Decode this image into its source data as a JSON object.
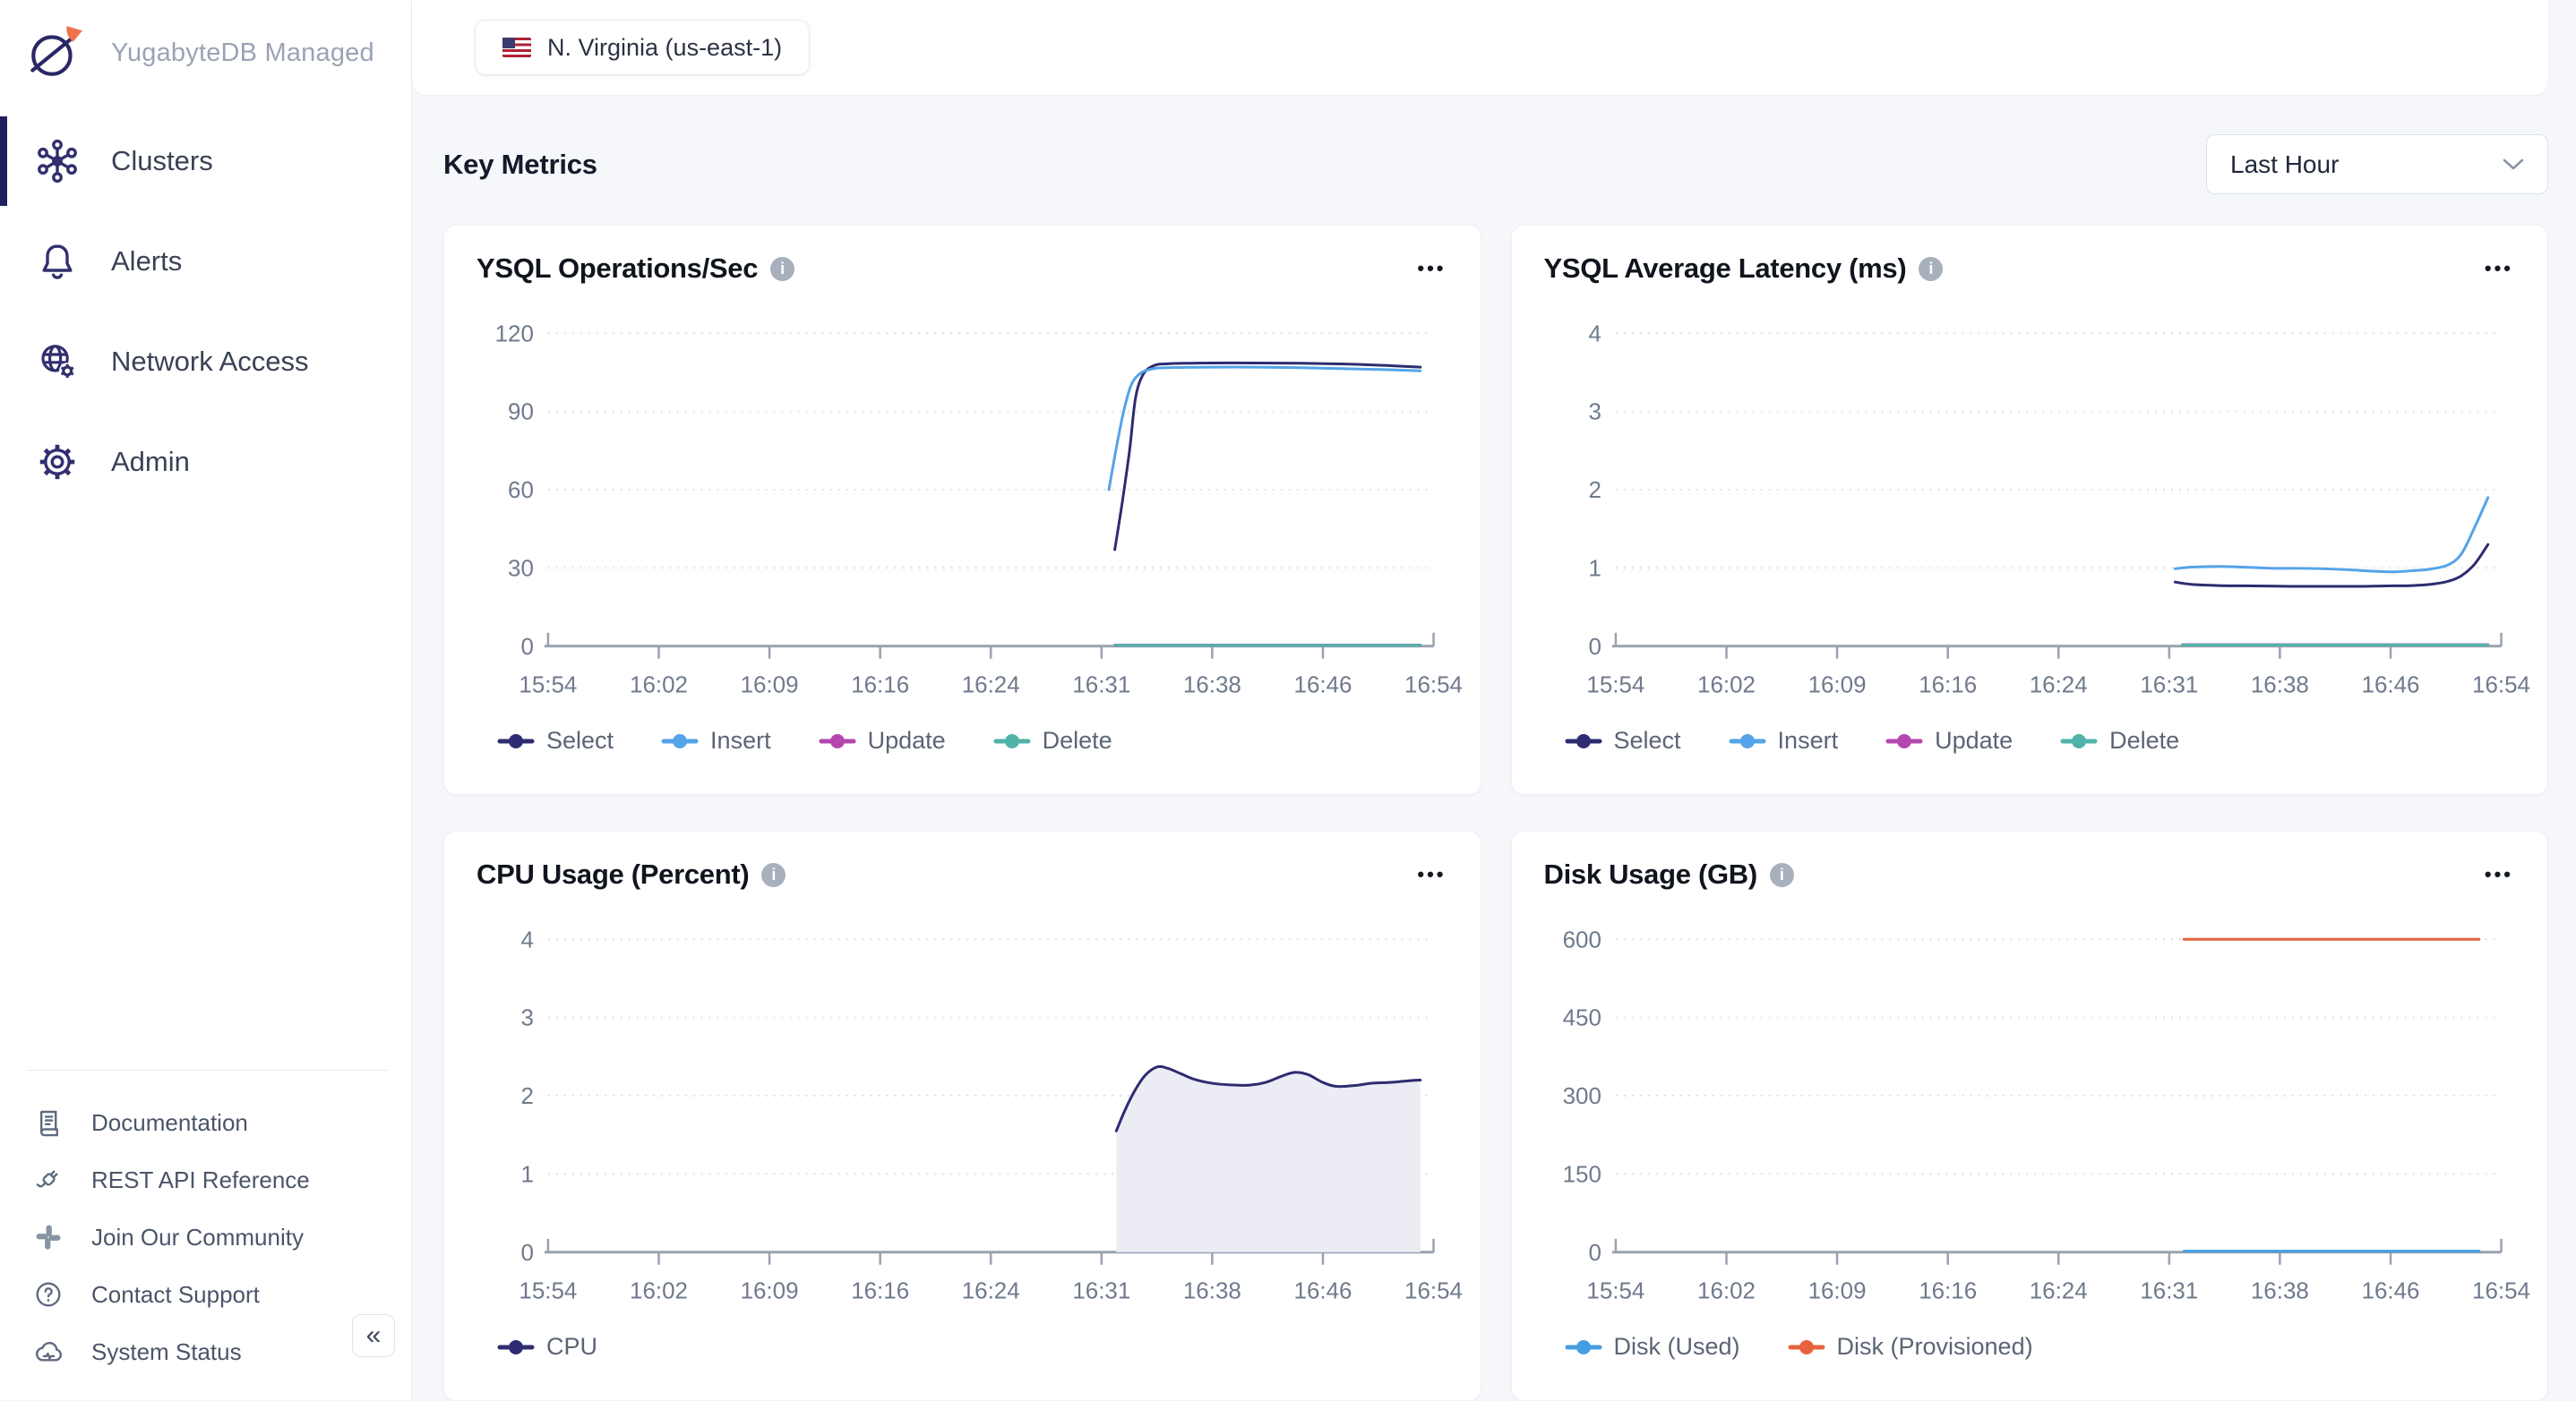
{
  "ui": {
    "info_glyph": "i",
    "menu_glyph": "•••",
    "collapse_glyph": "«"
  },
  "sidebar": {
    "brand": "YugabyteDB Managed",
    "items": [
      {
        "label": "Clusters",
        "icon": "clusters-icon",
        "active": true
      },
      {
        "label": "Alerts",
        "icon": "alerts-icon",
        "active": false
      },
      {
        "label": "Network Access",
        "icon": "network-access-icon",
        "active": false
      },
      {
        "label": "Admin",
        "icon": "admin-icon",
        "active": false
      }
    ],
    "footer_items": [
      {
        "label": "Documentation",
        "icon": "documentation-icon"
      },
      {
        "label": "REST API Reference",
        "icon": "rest-api-icon"
      },
      {
        "label": "Join Our Community",
        "icon": "community-icon"
      },
      {
        "label": "Contact Support",
        "icon": "support-icon"
      },
      {
        "label": "System Status",
        "icon": "system-status-icon"
      }
    ]
  },
  "header": {
    "region_label": "N. Virginia (us-east-1)"
  },
  "section": {
    "title": "Key Metrics",
    "time_range": "Last Hour"
  },
  "chart_data": [
    {
      "type": "line",
      "title": "YSQL Operations/Sec",
      "xlabel": "",
      "ylabel": "",
      "xlim": [
        0,
        60
      ],
      "ylim": [
        0,
        120
      ],
      "yticks": [
        0,
        30,
        60,
        90,
        120
      ],
      "xtick_labels": [
        "15:54",
        "16:02",
        "16:09",
        "16:16",
        "16:24",
        "16:31",
        "16:38",
        "16:46",
        "16:54"
      ],
      "grid": true,
      "legend_position": "bottom",
      "legend": [
        {
          "name": "Select",
          "color": "#2e2c71"
        },
        {
          "name": "Insert",
          "color": "#55a3e8"
        },
        {
          "name": "Update",
          "color": "#b447ae"
        },
        {
          "name": "Delete",
          "color": "#4fb3a9"
        }
      ],
      "series": [
        {
          "name": "Select",
          "color": "#2e2c71",
          "points": [
            [
              38.4,
              37
            ],
            [
              38.9,
              55
            ],
            [
              39.4,
              75
            ],
            [
              39.8,
              95
            ],
            [
              40.3,
              104
            ],
            [
              41,
              107.5
            ],
            [
              42,
              108.3
            ],
            [
              45,
              108.6
            ],
            [
              48,
              108.6
            ],
            [
              51,
              108.5
            ],
            [
              54,
              108.2
            ],
            [
              57,
              107.6
            ],
            [
              59.1,
              107
            ]
          ]
        },
        {
          "name": "Insert",
          "color": "#55a3e8",
          "points": [
            [
              38,
              60
            ],
            [
              38.5,
              76
            ],
            [
              39,
              90
            ],
            [
              39.5,
              100
            ],
            [
              40.1,
              104.5
            ],
            [
              40.9,
              106.3
            ],
            [
              42,
              106.8
            ],
            [
              45,
              107
            ],
            [
              48,
              107
            ],
            [
              51,
              106.8
            ],
            [
              54,
              106.4
            ],
            [
              57,
              106
            ],
            [
              59.1,
              105.6
            ]
          ]
        },
        {
          "name": "Update",
          "color": "#b447ae",
          "points": [
            [
              38.4,
              0.4
            ],
            [
              59.1,
              0.4
            ]
          ]
        },
        {
          "name": "Delete",
          "color": "#4fb3a9",
          "points": [
            [
              38.4,
              0.3
            ],
            [
              59.1,
              0.3
            ]
          ]
        }
      ]
    },
    {
      "type": "line",
      "title": "YSQL Average Latency (ms)",
      "xlabel": "",
      "ylabel": "",
      "xlim": [
        0,
        60
      ],
      "ylim": [
        0,
        4
      ],
      "yticks": [
        0,
        1,
        2,
        3,
        4
      ],
      "xtick_labels": [
        "15:54",
        "16:02",
        "16:09",
        "16:16",
        "16:24",
        "16:31",
        "16:38",
        "16:46",
        "16:54"
      ],
      "grid": true,
      "legend_position": "bottom",
      "legend": [
        {
          "name": "Select",
          "color": "#2e2c71"
        },
        {
          "name": "Insert",
          "color": "#55a3e8"
        },
        {
          "name": "Update",
          "color": "#b447ae"
        },
        {
          "name": "Delete",
          "color": "#4fb3a9"
        }
      ],
      "series": [
        {
          "name": "Select",
          "color": "#2e2c71",
          "points": [
            [
              37.9,
              0.82
            ],
            [
              39,
              0.79
            ],
            [
              40.8,
              0.775
            ],
            [
              43.2,
              0.77
            ],
            [
              45.6,
              0.765
            ],
            [
              48,
              0.765
            ],
            [
              50.4,
              0.765
            ],
            [
              52.2,
              0.77
            ],
            [
              54,
              0.775
            ],
            [
              55.2,
              0.79
            ],
            [
              56.4,
              0.83
            ],
            [
              57.3,
              0.9
            ],
            [
              58.2,
              1.05
            ],
            [
              59.1,
              1.3
            ]
          ]
        },
        {
          "name": "Insert",
          "color": "#55a3e8",
          "points": [
            [
              37.9,
              0.99
            ],
            [
              39,
              1.01
            ],
            [
              40.8,
              1.02
            ],
            [
              42.6,
              1.01
            ],
            [
              44.4,
              0.995
            ],
            [
              46.2,
              0.995
            ],
            [
              48,
              0.99
            ],
            [
              49.8,
              0.975
            ],
            [
              51.6,
              0.955
            ],
            [
              52.8,
              0.95
            ],
            [
              54,
              0.965
            ],
            [
              55.2,
              0.985
            ],
            [
              56.4,
              1.04
            ],
            [
              57.3,
              1.18
            ],
            [
              58.2,
              1.52
            ],
            [
              59.1,
              1.9
            ]
          ]
        },
        {
          "name": "Update",
          "color": "#b447ae",
          "points": [
            [
              38.4,
              0.02
            ],
            [
              59.1,
              0.02
            ]
          ]
        },
        {
          "name": "Delete",
          "color": "#4fb3a9",
          "points": [
            [
              38.4,
              0.015
            ],
            [
              59.1,
              0.015
            ]
          ]
        }
      ]
    },
    {
      "type": "area",
      "title": "CPU Usage (Percent)",
      "xlabel": "",
      "ylabel": "",
      "xlim": [
        0,
        60
      ],
      "ylim": [
        0,
        4
      ],
      "yticks": [
        0,
        1,
        2,
        3,
        4
      ],
      "xtick_labels": [
        "15:54",
        "16:02",
        "16:09",
        "16:16",
        "16:24",
        "16:31",
        "16:38",
        "16:46",
        "16:54"
      ],
      "grid": true,
      "legend_position": "bottom",
      "legend": [
        {
          "name": "CPU",
          "color": "#2e2c71"
        }
      ],
      "series": [
        {
          "name": "CPU",
          "color": "#2e2c71",
          "fill": "#ececf4",
          "points": [
            [
              38.5,
              1.55
            ],
            [
              39.1,
              1.82
            ],
            [
              39.8,
              2.08
            ],
            [
              40.5,
              2.27
            ],
            [
              41.3,
              2.37
            ],
            [
              42,
              2.35
            ],
            [
              42.9,
              2.28
            ],
            [
              43.8,
              2.21
            ],
            [
              45,
              2.16
            ],
            [
              46.2,
              2.14
            ],
            [
              47.4,
              2.135
            ],
            [
              48.6,
              2.17
            ],
            [
              49.7,
              2.25
            ],
            [
              50.6,
              2.3
            ],
            [
              51.5,
              2.27
            ],
            [
              52.5,
              2.17
            ],
            [
              53.4,
              2.12
            ],
            [
              54.6,
              2.13
            ],
            [
              55.8,
              2.16
            ],
            [
              57,
              2.17
            ],
            [
              58.2,
              2.19
            ],
            [
              59.1,
              2.2
            ]
          ]
        }
      ]
    },
    {
      "type": "line",
      "title": "Disk Usage (GB)",
      "xlabel": "",
      "ylabel": "",
      "xlim": [
        0,
        60
      ],
      "ylim": [
        0,
        600
      ],
      "yticks": [
        0,
        150,
        300,
        450,
        600
      ],
      "xtick_labels": [
        "15:54",
        "16:02",
        "16:09",
        "16:16",
        "16:24",
        "16:31",
        "16:38",
        "16:46",
        "16:54"
      ],
      "grid": true,
      "legend_position": "bottom",
      "legend": [
        {
          "name": "Disk (Used)",
          "color": "#459de2"
        },
        {
          "name": "Disk (Provisioned)",
          "color": "#e7633d"
        }
      ],
      "series": [
        {
          "name": "Disk (Used)",
          "color": "#459de2",
          "points": [
            [
              38.5,
              2
            ],
            [
              58.5,
              2
            ]
          ]
        },
        {
          "name": "Disk (Provisioned)",
          "color": "#e7633d",
          "points": [
            [
              38.5,
              600
            ],
            [
              58.5,
              600
            ]
          ]
        }
      ]
    }
  ]
}
